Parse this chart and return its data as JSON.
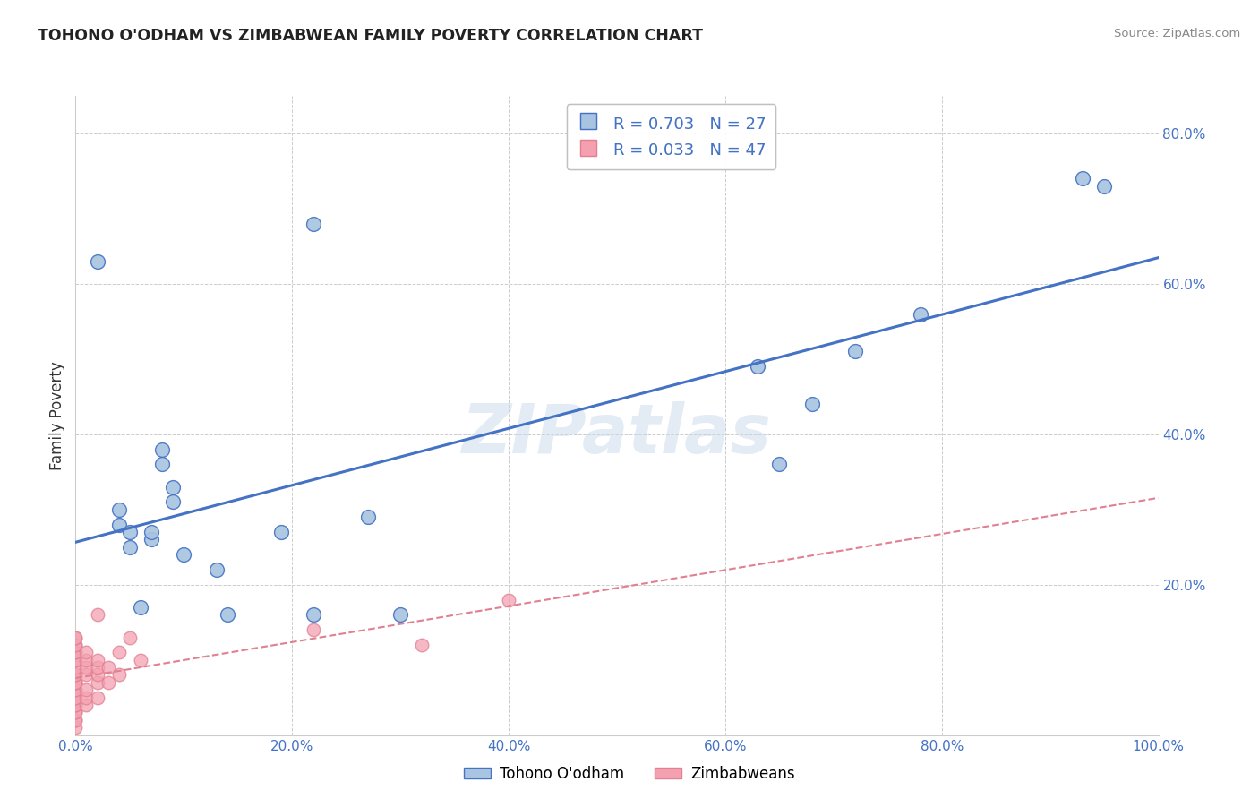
{
  "title": "TOHONO O'ODHAM VS ZIMBABWEAN FAMILY POVERTY CORRELATION CHART",
  "source": "Source: ZipAtlas.com",
  "ylabel": "Family Poverty",
  "watermark": "ZIPatlas",
  "legend_labels": [
    "Tohono O'odham",
    "Zimbabweans"
  ],
  "tohono_R": 0.703,
  "tohono_N": 27,
  "zimbabwe_R": 0.033,
  "zimbabwe_N": 47,
  "xlim": [
    0.0,
    1.0
  ],
  "ylim": [
    0.0,
    0.85
  ],
  "xticks": [
    0.0,
    0.2,
    0.4,
    0.6,
    0.8,
    1.0
  ],
  "yticks": [
    0.0,
    0.2,
    0.4,
    0.6,
    0.8
  ],
  "xticklabels": [
    "0.0%",
    "20.0%",
    "40.0%",
    "60.0%",
    "80.0%",
    "100.0%"
  ],
  "yticklabels": [
    "",
    "20.0%",
    "40.0%",
    "60.0%",
    "80.0%"
  ],
  "tohono_color": "#a8c4e0",
  "zimbabwe_color": "#f4a0b0",
  "tohono_line_color": "#4472c4",
  "zimbabwe_line_color": "#e08090",
  "tick_color": "#4472c4",
  "tohono_scatter": [
    [
      0.02,
      0.63
    ],
    [
      0.04,
      0.28
    ],
    [
      0.04,
      0.3
    ],
    [
      0.05,
      0.27
    ],
    [
      0.05,
      0.25
    ],
    [
      0.06,
      0.17
    ],
    [
      0.07,
      0.26
    ],
    [
      0.07,
      0.27
    ],
    [
      0.08,
      0.38
    ],
    [
      0.08,
      0.36
    ],
    [
      0.09,
      0.33
    ],
    [
      0.09,
      0.31
    ],
    [
      0.1,
      0.24
    ],
    [
      0.13,
      0.22
    ],
    [
      0.14,
      0.16
    ],
    [
      0.19,
      0.27
    ],
    [
      0.22,
      0.68
    ],
    [
      0.22,
      0.16
    ],
    [
      0.27,
      0.29
    ],
    [
      0.3,
      0.16
    ],
    [
      0.63,
      0.49
    ],
    [
      0.65,
      0.36
    ],
    [
      0.68,
      0.44
    ],
    [
      0.72,
      0.51
    ],
    [
      0.78,
      0.56
    ],
    [
      0.93,
      0.74
    ],
    [
      0.95,
      0.73
    ]
  ],
  "zimbabwe_scatter": [
    [
      0.0,
      0.01
    ],
    [
      0.0,
      0.02
    ],
    [
      0.0,
      0.02
    ],
    [
      0.0,
      0.03
    ],
    [
      0.0,
      0.03
    ],
    [
      0.0,
      0.04
    ],
    [
      0.0,
      0.04
    ],
    [
      0.0,
      0.05
    ],
    [
      0.0,
      0.05
    ],
    [
      0.0,
      0.06
    ],
    [
      0.0,
      0.06
    ],
    [
      0.0,
      0.07
    ],
    [
      0.0,
      0.07
    ],
    [
      0.0,
      0.07
    ],
    [
      0.0,
      0.08
    ],
    [
      0.0,
      0.08
    ],
    [
      0.0,
      0.09
    ],
    [
      0.0,
      0.1
    ],
    [
      0.0,
      0.1
    ],
    [
      0.0,
      0.11
    ],
    [
      0.0,
      0.11
    ],
    [
      0.0,
      0.12
    ],
    [
      0.0,
      0.12
    ],
    [
      0.0,
      0.13
    ],
    [
      0.0,
      0.13
    ],
    [
      0.01,
      0.04
    ],
    [
      0.01,
      0.05
    ],
    [
      0.01,
      0.06
    ],
    [
      0.01,
      0.08
    ],
    [
      0.01,
      0.09
    ],
    [
      0.01,
      0.1
    ],
    [
      0.01,
      0.11
    ],
    [
      0.02,
      0.05
    ],
    [
      0.02,
      0.07
    ],
    [
      0.02,
      0.08
    ],
    [
      0.02,
      0.09
    ],
    [
      0.02,
      0.1
    ],
    [
      0.02,
      0.16
    ],
    [
      0.03,
      0.07
    ],
    [
      0.03,
      0.09
    ],
    [
      0.04,
      0.08
    ],
    [
      0.04,
      0.11
    ],
    [
      0.05,
      0.13
    ],
    [
      0.06,
      0.1
    ],
    [
      0.22,
      0.14
    ],
    [
      0.32,
      0.12
    ],
    [
      0.4,
      0.18
    ]
  ],
  "background_color": "#ffffff",
  "grid_color": "#cccccc"
}
